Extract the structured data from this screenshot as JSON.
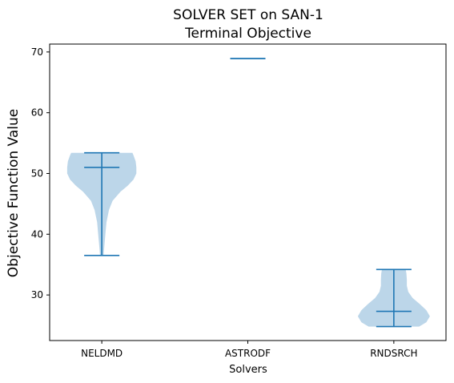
{
  "chart_data": {
    "type": "violin",
    "title": "SOLVER SET on SAN-1",
    "subtitle": "Terminal Objective",
    "xlabel": "Solvers",
    "ylabel": "Objective Function Value",
    "categories": [
      "NELDMD",
      "ASTRODF",
      "RNDSRCH"
    ],
    "ylim": [
      22.5,
      71.3
    ],
    "yticks": [
      30,
      40,
      50,
      60,
      70
    ],
    "ytick_labels": [
      "30",
      "40",
      "50",
      "60",
      "70"
    ],
    "grid": false,
    "colors": {
      "body": "#a6c8e2",
      "lines": "#1f77b4"
    },
    "violins": [
      {
        "solver": "NELDMD",
        "min": 36.5,
        "median": 51.0,
        "max": 53.4,
        "density": [
          [
            36.5,
            0.05
          ],
          [
            38,
            0.07
          ],
          [
            40,
            0.1
          ],
          [
            42,
            0.13
          ],
          [
            44,
            0.2
          ],
          [
            45.5,
            0.3
          ],
          [
            47,
            0.52
          ],
          [
            48,
            0.72
          ],
          [
            49,
            0.88
          ],
          [
            50,
            0.96
          ],
          [
            51,
            0.96
          ],
          [
            52,
            0.94
          ],
          [
            53,
            0.88
          ],
          [
            53.4,
            0.85
          ]
        ]
      },
      {
        "solver": "ASTRODF",
        "min": 68.9,
        "median": 68.9,
        "max": 68.9,
        "density": []
      },
      {
        "solver": "RNDSRCH",
        "min": 24.8,
        "median": 27.3,
        "max": 34.2,
        "density": [
          [
            24.8,
            0.7
          ],
          [
            25.5,
            0.9
          ],
          [
            26.5,
            1.0
          ],
          [
            27.5,
            0.9
          ],
          [
            28.5,
            0.72
          ],
          [
            29.5,
            0.52
          ],
          [
            30.5,
            0.4
          ],
          [
            31.5,
            0.36
          ],
          [
            32.5,
            0.36
          ],
          [
            33.5,
            0.35
          ],
          [
            34.2,
            0.33
          ]
        ]
      }
    ]
  }
}
